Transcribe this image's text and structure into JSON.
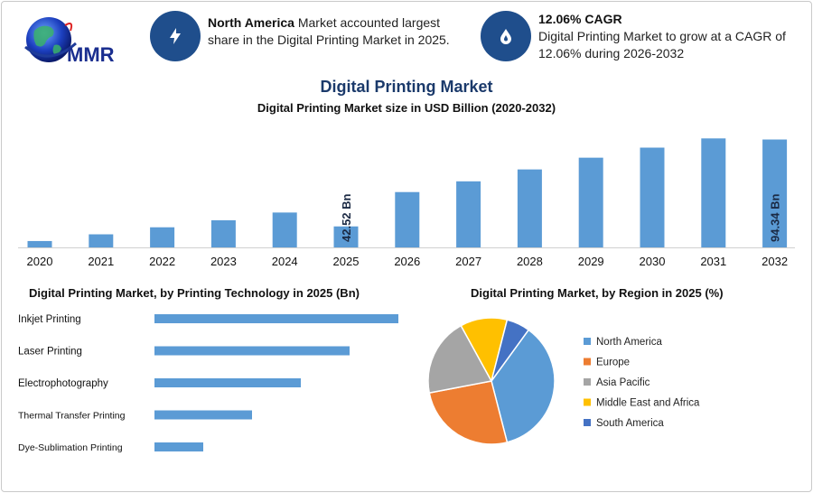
{
  "header": {
    "logo_text": "MMR",
    "info1": {
      "bold": "North America",
      "rest": " Market accounted largest share in the Digital Printing Market in 2025.",
      "icon": "lightning-icon"
    },
    "info2": {
      "bold": "12.06% CAGR",
      "rest": "Digital Printing Market to grow at a CAGR of 12.06% during 2026-2032",
      "icon": "drop-icon"
    }
  },
  "titles": {
    "main": "Digital Printing Market",
    "sub": "Digital Printing Market size in USD Billion (2020-2032)",
    "tech": "Digital Printing Market, by Printing Technology in 2025 (Bn)",
    "region": "Digital Printing Market, by Region in 2025 (%)"
  },
  "colors": {
    "bar": "#5b9bd5",
    "dark_blue": "#1f4e8c"
  },
  "chart_data": [
    {
      "type": "bar",
      "title": "Digital Printing Market size in USD Billion (2020-2032)",
      "categories": [
        "2020",
        "2021",
        "2022",
        "2023",
        "2024",
        "2025",
        "2026",
        "2027",
        "2028",
        "2029",
        "2030",
        "2031",
        "2032"
      ],
      "values": [
        33.8,
        37.8,
        42.0,
        46.2,
        50.8,
        42.52,
        63.0,
        69.4,
        76.5,
        83.5,
        89.5,
        95.0,
        94.34
      ],
      "data_labels": {
        "5": "42.52 Bn",
        "12": "94.34 Bn"
      },
      "ylim": [
        30,
        100
      ],
      "grid": false
    },
    {
      "type": "bar",
      "orientation": "horizontal",
      "title": "Digital Printing Market, by Printing Technology in 2025 (Bn)",
      "categories": [
        "Inkjet Printing",
        "Laser Printing",
        "Electrophotography",
        "Thermal Transfer Printing",
        "Dye-Sublimation Printing"
      ],
      "values": [
        10.0,
        8.0,
        6.0,
        4.0,
        2.0
      ],
      "xlim": [
        0,
        10
      ]
    },
    {
      "type": "pie",
      "title": "Digital Printing Market, by Region in 2025 (%)",
      "categories": [
        "North America",
        "Europe",
        "Asia Pacific",
        "Middle East and Africa",
        "South America"
      ],
      "values": [
        36,
        26,
        20,
        12,
        6
      ],
      "colors": [
        "#5b9bd5",
        "#ed7d31",
        "#a5a5a5",
        "#ffc000",
        "#4472c4"
      ],
      "legend": "right"
    }
  ]
}
